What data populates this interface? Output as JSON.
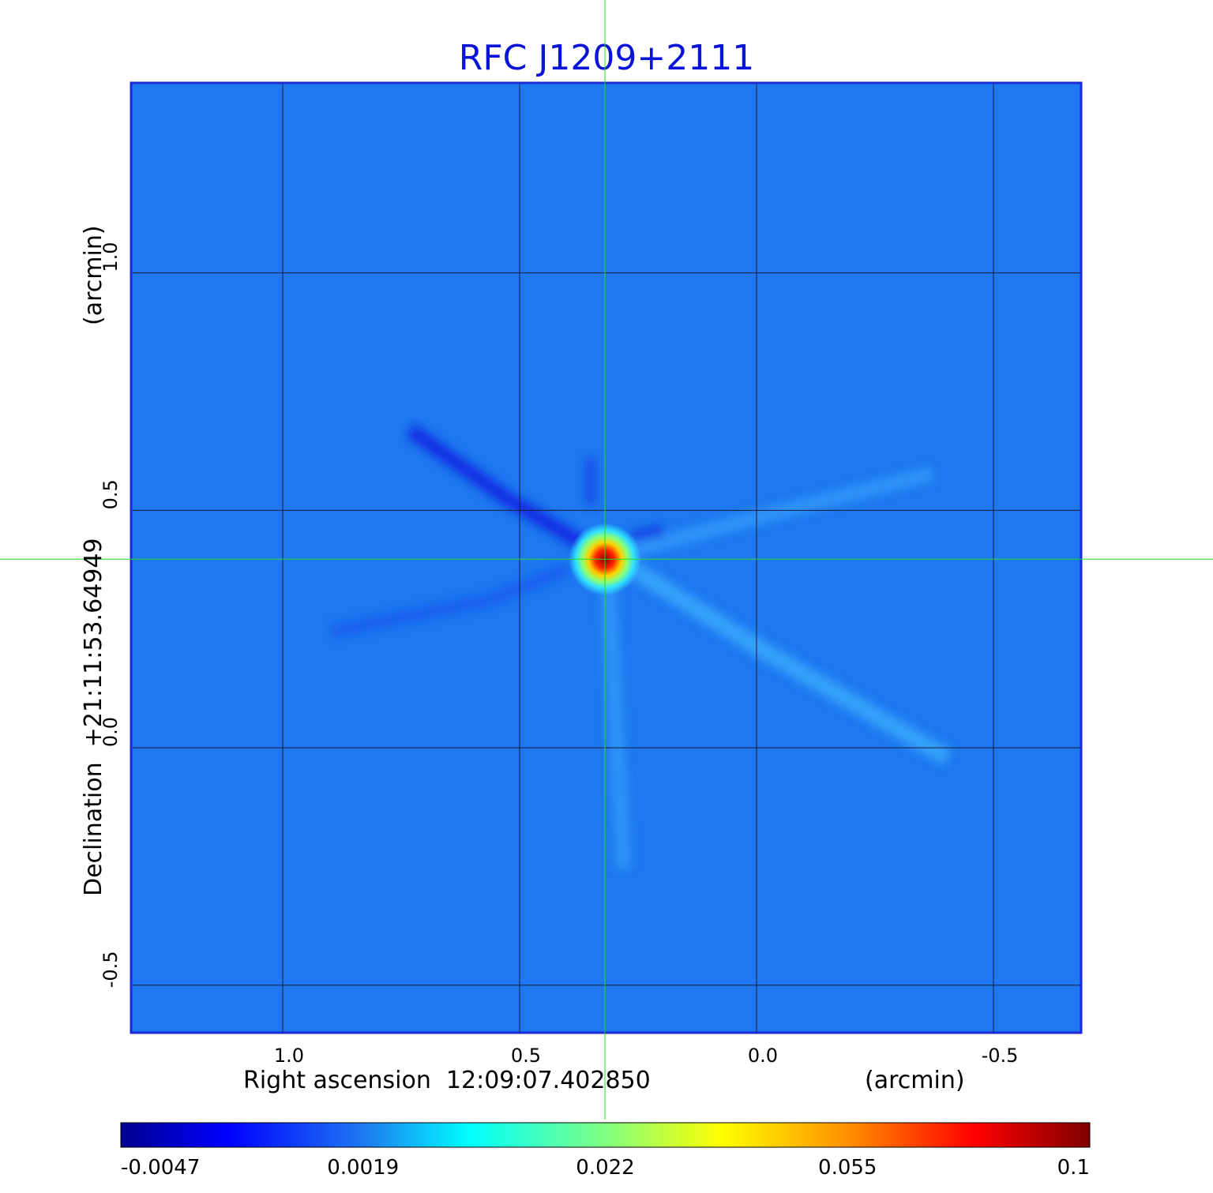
{
  "chart_data": {
    "type": "heatmap",
    "title": "RFC J1209+2111",
    "xlabel": "Right ascension  12:09:07.402850",
    "xunit": "(arcmin)",
    "ylabel": "Declination  +21:11:53.64949",
    "yunit": "(arcmin)",
    "x_ticks": [
      "1.0",
      "0.5",
      "0.0",
      "-0.5"
    ],
    "x_tick_values": [
      1.0,
      0.5,
      0.0,
      -0.5
    ],
    "y_ticks": [
      "1.0",
      "0.5",
      "0.0",
      "-0.5"
    ],
    "y_tick_values": [
      1.0,
      0.5,
      0.0,
      -0.5
    ],
    "xlim": [
      1.32,
      -0.685
    ],
    "ylim": [
      -0.6,
      1.4
    ],
    "grid": true,
    "crosshair": {
      "x": 0.32,
      "y": 0.397
    },
    "source_peak": {
      "x": 0.32,
      "y": 0.397,
      "value": 0.1
    },
    "colormap": "jet",
    "colorbar_ticks": [
      "-0.0047",
      "0.0019",
      "0.022",
      "0.055",
      "0.1"
    ],
    "colorbar_values": [
      -0.0047,
      0.0019,
      0.022,
      0.055,
      0.1
    ],
    "colorbar_placement": "bottom",
    "colors": {
      "title": "#0a14d8",
      "frame": "#1a2ad6",
      "background_map": "#1e78f0",
      "grid": "#1a1a3a",
      "crosshair": "#22dd22"
    }
  }
}
